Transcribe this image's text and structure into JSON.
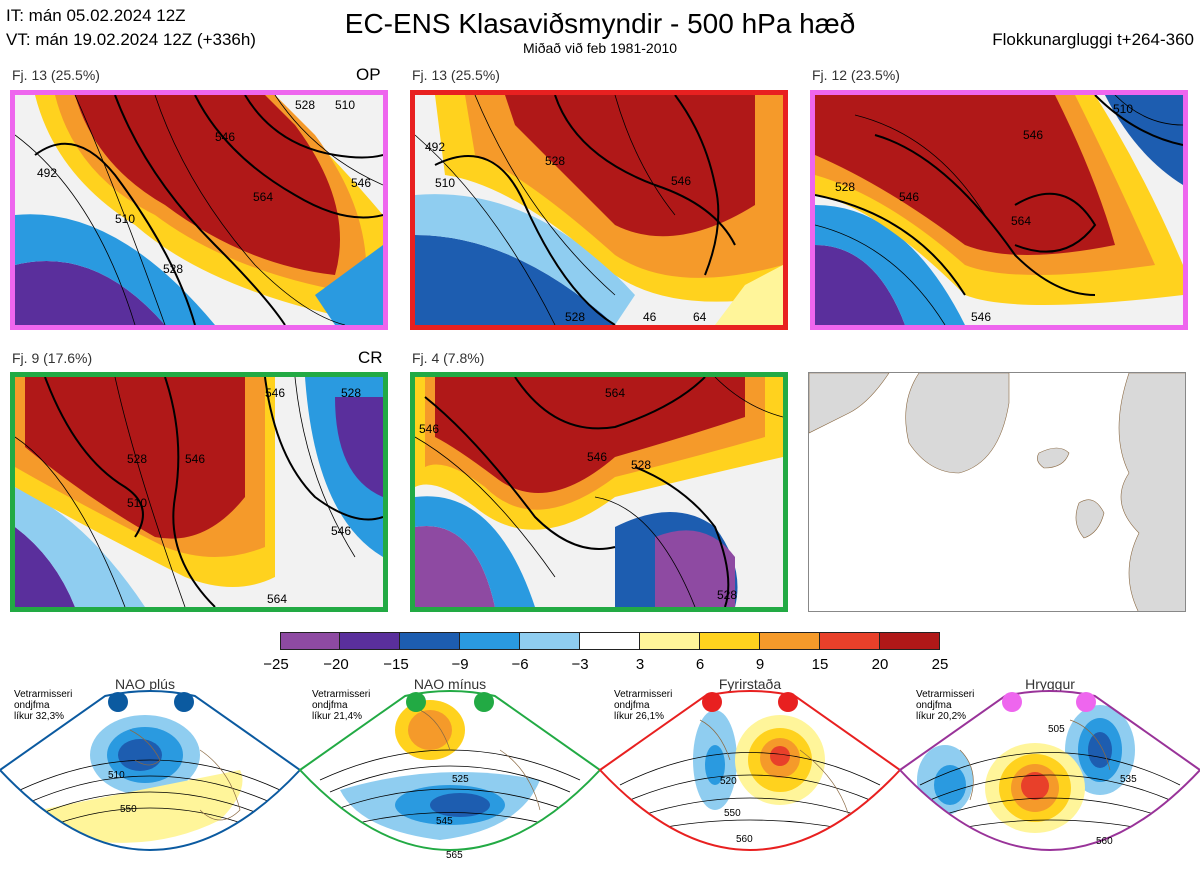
{
  "header": {
    "issue_time": "IT: mán 05.02.2024 12Z",
    "valid_time": "VT: mán 19.02.2024 12Z  (+336h)",
    "title": "EC-ENS Klasaviðsmyndir - 500 hPa hæð",
    "subtitle": "Miðað við feb 1981-2010",
    "window": "Flokkunargluggi t+264-360"
  },
  "clusters": [
    {
      "label": "Fj. 13 (25.5%)",
      "tag": "OP",
      "border_color": "#ee66ee",
      "contours": [
        "492",
        "510",
        "528",
        "546",
        "564",
        "528",
        "546",
        "510"
      ]
    },
    {
      "label": "Fj. 13 (25.5%)",
      "tag": "",
      "border_color": "#e82020",
      "contours": [
        "492",
        "510",
        "528",
        "546",
        "528",
        "46",
        "64"
      ]
    },
    {
      "label": "Fj. 12 (23.5%)",
      "tag": "",
      "border_color": "#ee66ee",
      "contours": [
        "546",
        "546",
        "564",
        "528",
        "510",
        "546"
      ]
    },
    {
      "label": "Fj. 9 (17.6%)",
      "tag": "CR",
      "border_color": "#22aa44",
      "contours": [
        "528",
        "510",
        "546",
        "546",
        "528",
        "546",
        "564"
      ]
    },
    {
      "label": "Fj. 4 (7.8%)",
      "tag": "",
      "border_color": "#22aa44",
      "contours": [
        "546",
        "564",
        "546",
        "528",
        "528"
      ]
    }
  ],
  "colorbar": {
    "ticks": [
      "−25",
      "−20",
      "−15",
      "−9",
      "−6",
      "−3",
      "3",
      "6",
      "9",
      "15",
      "20",
      "25"
    ],
    "colors": [
      "#8e4aa2",
      "#5a2f9c",
      "#1d5db0",
      "#2a9ae0",
      "#8fcdf0",
      "#ffffff",
      "#fff59a",
      "#ffd21e",
      "#f59a2a",
      "#e8402a",
      "#b01818"
    ]
  },
  "regimes": [
    {
      "name": "NAO plús",
      "note": "Vetrarmisseri\nondjfma\nlíkur 32,3%",
      "color": "#0b5aa0",
      "contours": [
        "510",
        "550"
      ]
    },
    {
      "name": "NAO mínus",
      "note": "Vetrarmisseri\nondjfma\nlíkur 21,4%",
      "color": "#22aa44",
      "contours": [
        "525",
        "545",
        "565"
      ]
    },
    {
      "name": "Fyrirstaða",
      "note": "Vetrarmisseri\nondjfma\nlíkur 26,1%",
      "color": "#e82020",
      "contours": [
        "520",
        "550",
        "560"
      ]
    },
    {
      "name": "Hryggur",
      "note": "Vetrarmisseri\nondjfma\nlíkur 20,2%",
      "color": "#993399",
      "contours": [
        "505",
        "535",
        "560"
      ]
    }
  ]
}
